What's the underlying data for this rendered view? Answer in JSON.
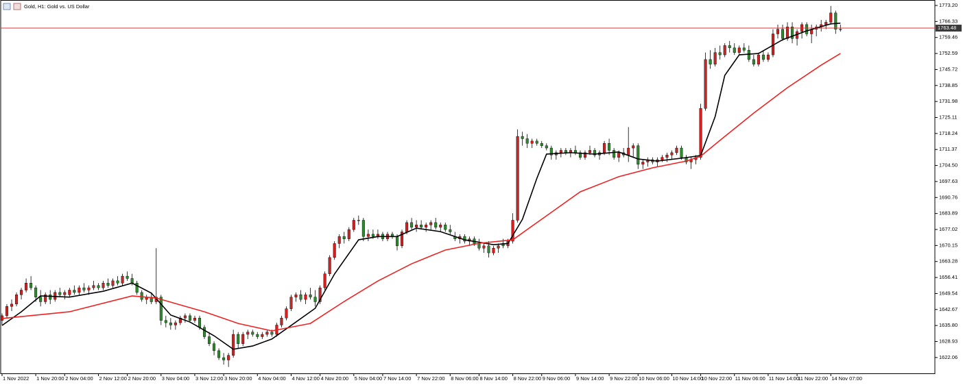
{
  "chart_data": {
    "type": "candlestick",
    "title": "Gold, H1:  Gold vs. US Dollar",
    "up_color": "#d42020",
    "down_color": "#2d8a2d",
    "wick_color": "#000000",
    "xlim": [
      -0.28,
      193.6
    ],
    "ylim": [
      1615.26,
      1775.55
    ],
    "yticks": [
      {
        "value": 1773.2,
        "label": "1773.20"
      },
      1766.33,
      1759.46,
      1752.59,
      1745.72,
      1738.85,
      1731.98,
      1725.11,
      1718.24,
      1711.37,
      {
        "value": 1704.5,
        "label": "1704.50"
      },
      1697.63,
      1690.76,
      1683.89,
      1677.02,
      1670.15,
      1663.28,
      1656.41,
      1649.54,
      1642.67,
      {
        "value": 1635.8,
        "label": "1635.80"
      },
      1628.93,
      1622.06
    ],
    "xticks": [
      {
        "value": 0,
        "label": "1 Nov 2022"
      },
      {
        "value": 7,
        "label": "1 Nov 20:00"
      },
      {
        "value": 13,
        "label": "2 Nov 04:00"
      },
      {
        "value": 20,
        "label": "2 Nov 12:00"
      },
      {
        "value": 26,
        "label": "2 Nov 20:00"
      },
      {
        "value": 33,
        "label": "3 Nov 04:00"
      },
      {
        "value": 40,
        "label": "3 Nov 12:00"
      },
      {
        "value": 46,
        "label": "3 Nov 20:00"
      },
      {
        "value": 53,
        "label": "4 Nov 04:00"
      },
      {
        "value": 60,
        "label": "4 Nov 12:00"
      },
      {
        "value": 66,
        "label": "4 Nov 20:00"
      },
      {
        "value": 73,
        "label": "5 Nov 04:00"
      },
      {
        "value": 79,
        "label": "7 Nov 14:00"
      },
      {
        "value": 86,
        "label": "7 Nov 22:00"
      },
      {
        "value": 93,
        "label": "8 Nov 06:00"
      },
      {
        "value": 99,
        "label": "8 Nov 14:00"
      },
      {
        "value": 106,
        "label": "8 Nov 22:00"
      },
      {
        "value": 112,
        "label": "9 Nov 06:00"
      },
      {
        "value": 119,
        "label": "9 Nov 14:00"
      },
      {
        "value": 126,
        "label": "9 Nov 22:00"
      },
      {
        "value": 132,
        "label": "10 Nov 06:00"
      },
      {
        "value": 139,
        "label": "10 Nov 14:00"
      },
      {
        "value": 145,
        "label": "10 Nov 22:00"
      },
      {
        "value": 152,
        "label": "11 Nov 06:00"
      },
      {
        "value": 159,
        "label": "11 Nov 14:00"
      },
      {
        "value": 165,
        "label": "11 Nov 22:00"
      },
      {
        "value": 172,
        "label": "14 Nov 07:00"
      }
    ],
    "bid": 1763.48,
    "bid_color": "#e03030",
    "ohlc": [
      [
        1638,
        1641,
        1636,
        1640
      ],
      [
        1640,
        1645,
        1639,
        1644
      ],
      [
        1644,
        1647,
        1642,
        1645
      ],
      [
        1645,
        1650,
        1644,
        1649
      ],
      [
        1649,
        1652,
        1647,
        1651
      ],
      [
        1651,
        1656,
        1650,
        1654
      ],
      [
        1654,
        1657,
        1651,
        1652
      ],
      [
        1652,
        1653,
        1646,
        1648
      ],
      [
        1648,
        1651,
        1644,
        1646
      ],
      [
        1646,
        1650,
        1645,
        1649
      ],
      [
        1649,
        1651,
        1645,
        1647
      ],
      [
        1647,
        1651,
        1646,
        1650
      ],
      [
        1650,
        1652,
        1648,
        1649
      ],
      [
        1649,
        1651,
        1647,
        1650
      ],
      [
        1649,
        1652,
        1648,
        1651
      ],
      [
        1651,
        1653,
        1649,
        1650
      ],
      [
        1650,
        1653,
        1649,
        1652
      ],
      [
        1652,
        1654,
        1650,
        1651
      ],
      [
        1651,
        1653,
        1649,
        1652
      ],
      [
        1652,
        1655,
        1651,
        1653
      ],
      [
        1653,
        1654,
        1651,
        1652
      ],
      [
        1652,
        1655,
        1651,
        1654
      ],
      [
        1654,
        1656,
        1652,
        1653
      ],
      [
        1653,
        1656,
        1652,
        1655
      ],
      [
        1655,
        1657,
        1653,
        1654
      ],
      [
        1654,
        1658,
        1653,
        1657
      ],
      [
        1657,
        1659,
        1655,
        1656
      ],
      [
        1656,
        1658,
        1653,
        1654
      ],
      [
        1654,
        1655,
        1649,
        1650
      ],
      [
        1650,
        1651,
        1646,
        1647
      ],
      [
        1647,
        1649,
        1645,
        1648
      ],
      [
        1648,
        1650,
        1645,
        1646
      ],
      [
        1646,
        1669,
        1645,
        1648
      ],
      [
        1648,
        1649,
        1636,
        1638
      ],
      [
        1638,
        1640,
        1635,
        1637
      ],
      [
        1637,
        1639,
        1634,
        1636
      ],
      [
        1636,
        1638,
        1634,
        1637
      ],
      [
        1637,
        1640,
        1636,
        1639
      ],
      [
        1639,
        1641,
        1637,
        1640
      ],
      [
        1640,
        1641,
        1637,
        1638
      ],
      [
        1638,
        1640,
        1637,
        1639
      ],
      [
        1639,
        1640,
        1634,
        1635
      ],
      [
        1635,
        1636,
        1630,
        1631
      ],
      [
        1631,
        1633,
        1627,
        1628
      ],
      [
        1628,
        1629,
        1623,
        1625
      ],
      [
        1625,
        1626,
        1621,
        1622
      ],
      [
        1622,
        1624,
        1619,
        1621
      ],
      [
        1621,
        1624,
        1618,
        1623
      ],
      [
        1623,
        1634,
        1622,
        1632
      ],
      [
        1632,
        1633,
        1626,
        1628
      ],
      [
        1628,
        1633,
        1627,
        1632
      ],
      [
        1632,
        1634,
        1630,
        1633
      ],
      [
        1633,
        1634,
        1631,
        1632
      ],
      [
        1632,
        1633,
        1630,
        1631
      ],
      [
        1631,
        1633,
        1630,
        1632
      ],
      [
        1632,
        1634,
        1631,
        1633
      ],
      [
        1633,
        1634,
        1631,
        1632
      ],
      [
        1632,
        1637,
        1631,
        1636
      ],
      [
        1636,
        1640,
        1635,
        1639
      ],
      [
        1639,
        1644,
        1638,
        1643
      ],
      [
        1643,
        1649,
        1642,
        1648
      ],
      [
        1648,
        1650,
        1646,
        1649
      ],
      [
        1649,
        1651,
        1646,
        1647
      ],
      [
        1647,
        1650,
        1645,
        1649
      ],
      [
        1649,
        1652,
        1647,
        1648
      ],
      [
        1648,
        1651,
        1644,
        1646
      ],
      [
        1646,
        1653,
        1645,
        1652
      ],
      [
        1652,
        1659,
        1651,
        1658
      ],
      [
        1658,
        1666,
        1657,
        1665
      ],
      [
        1665,
        1672,
        1664,
        1671
      ],
      [
        1671,
        1675,
        1669,
        1674
      ],
      [
        1674,
        1676,
        1671,
        1673
      ],
      [
        1673,
        1678,
        1672,
        1677
      ],
      [
        1677,
        1682,
        1676,
        1681
      ],
      [
        1681,
        1683,
        1679,
        1681
      ],
      [
        1681,
        1682,
        1672,
        1674
      ],
      [
        1674,
        1677,
        1672,
        1675
      ],
      [
        1675,
        1677,
        1673,
        1674
      ],
      [
        1674,
        1677,
        1673,
        1675
      ],
      [
        1675,
        1676,
        1672,
        1673
      ],
      [
        1673,
        1676,
        1672,
        1675
      ],
      [
        1675,
        1676,
        1673,
        1674
      ],
      [
        1674,
        1675,
        1668,
        1670
      ],
      [
        1670,
        1677,
        1669,
        1676
      ],
      [
        1676,
        1681,
        1675,
        1680
      ],
      [
        1680,
        1682,
        1677,
        1678
      ],
      [
        1678,
        1681,
        1676,
        1679
      ],
      [
        1679,
        1681,
        1677,
        1678
      ],
      [
        1678,
        1680,
        1676,
        1679
      ],
      [
        1679,
        1681,
        1677,
        1680
      ],
      [
        1680,
        1682,
        1677,
        1678
      ],
      [
        1678,
        1680,
        1676,
        1679
      ],
      [
        1679,
        1680,
        1676,
        1677
      ],
      [
        1677,
        1679,
        1675,
        1676
      ],
      [
        1674,
        1676,
        1672,
        1673
      ],
      [
        1673,
        1675,
        1671,
        1674
      ],
      [
        1674,
        1675,
        1671,
        1672
      ],
      [
        1672,
        1674,
        1670,
        1673
      ],
      [
        1673,
        1674,
        1670,
        1671
      ],
      [
        1671,
        1673,
        1668,
        1669
      ],
      [
        1669,
        1671,
        1667,
        1670
      ],
      [
        1670,
        1672,
        1665,
        1667
      ],
      [
        1667,
        1670,
        1666,
        1669
      ],
      [
        1669,
        1671,
        1667,
        1670
      ],
      [
        1671,
        1673,
        1669,
        1670
      ],
      [
        1670,
        1673,
        1669,
        1672
      ],
      [
        1672,
        1684,
        1671,
        1681
      ],
      [
        1681,
        1720,
        1680,
        1717
      ],
      [
        1717,
        1719,
        1713,
        1716
      ],
      [
        1716,
        1718,
        1712,
        1714
      ],
      [
        1714,
        1716,
        1712,
        1715
      ],
      [
        1715,
        1716,
        1713,
        1714
      ],
      [
        1714,
        1715,
        1712,
        1713
      ],
      [
        1713,
        1714,
        1711,
        1712
      ],
      [
        1712,
        1713,
        1707,
        1709
      ],
      [
        1709,
        1711,
        1707,
        1710
      ],
      [
        1710,
        1712,
        1708,
        1711
      ],
      [
        1711,
        1712,
        1709,
        1710
      ],
      [
        1710,
        1712,
        1708,
        1711
      ],
      [
        1711,
        1713,
        1709,
        1710
      ],
      [
        1710,
        1711,
        1707,
        1708
      ],
      [
        1708,
        1711,
        1707,
        1710
      ],
      [
        1710,
        1713,
        1709,
        1711
      ],
      [
        1711,
        1712,
        1708,
        1709
      ],
      [
        1709,
        1711,
        1707,
        1710
      ],
      [
        1710,
        1715,
        1709,
        1714
      ],
      [
        1714,
        1716,
        1709,
        1711
      ],
      [
        1711,
        1712,
        1707,
        1708
      ],
      [
        1708,
        1711,
        1706,
        1710
      ],
      [
        1710,
        1712,
        1708,
        1709
      ],
      [
        1709,
        1721,
        1706,
        1712
      ],
      [
        1712,
        1714,
        1708,
        1713
      ],
      [
        1713,
        1714,
        1703,
        1705
      ],
      [
        1705,
        1707,
        1703,
        1706
      ],
      [
        1706,
        1708,
        1704,
        1707
      ],
      [
        1707,
        1708,
        1705,
        1706
      ],
      [
        1706,
        1708,
        1704,
        1707
      ],
      [
        1707,
        1709,
        1706,
        1708
      ],
      [
        1708,
        1710,
        1706,
        1709
      ],
      [
        1709,
        1711,
        1707,
        1710
      ],
      [
        1710,
        1713,
        1709,
        1712
      ],
      [
        1712,
        1713,
        1707,
        1708
      ],
      [
        1708,
        1709,
        1705,
        1706
      ],
      [
        1706,
        1708,
        1703,
        1707
      ],
      [
        1707,
        1709,
        1705,
        1708
      ],
      [
        1708,
        1731,
        1707,
        1729
      ],
      [
        1729,
        1753,
        1728,
        1750
      ],
      [
        1750,
        1754,
        1746,
        1748
      ],
      [
        1748,
        1755,
        1747,
        1753
      ],
      [
        1753,
        1756,
        1750,
        1752
      ],
      [
        1752,
        1757,
        1751,
        1756
      ],
      [
        1756,
        1758,
        1753,
        1755
      ],
      [
        1755,
        1757,
        1752,
        1753
      ],
      [
        1753,
        1756,
        1752,
        1755
      ],
      [
        1755,
        1757,
        1753,
        1754
      ],
      [
        1754,
        1756,
        1749,
        1750
      ],
      [
        1750,
        1752,
        1747,
        1748
      ],
      [
        1748,
        1753,
        1747,
        1752
      ],
      [
        1752,
        1754,
        1749,
        1750
      ],
      [
        1750,
        1753,
        1749,
        1752
      ],
      [
        1752,
        1763,
        1751,
        1761
      ],
      [
        1761,
        1765,
        1759,
        1763
      ],
      [
        1763,
        1765,
        1758,
        1759
      ],
      [
        1759,
        1766,
        1758,
        1764
      ],
      [
        1764,
        1766,
        1757,
        1759
      ],
      [
        1759,
        1763,
        1756,
        1762
      ],
      [
        1762,
        1766,
        1759,
        1765
      ],
      [
        1765,
        1766,
        1760,
        1761
      ],
      [
        1761,
        1765,
        1757,
        1763
      ],
      [
        1763,
        1765,
        1760,
        1764
      ],
      [
        1764,
        1767,
        1762,
        1765
      ],
      [
        1765,
        1767,
        1763,
        1766
      ],
      [
        1766,
        1773,
        1765,
        1770
      ],
      [
        1770,
        1771,
        1761,
        1763
      ],
      [
        1763,
        1765,
        1762,
        1763
      ]
    ],
    "lines": [
      {
        "color": "#000000",
        "x": [
          0,
          4,
          8,
          14,
          21,
          27,
          31,
          35,
          39,
          44,
          48,
          52,
          56,
          61,
          65,
          69,
          74,
          78,
          82,
          86,
          91,
          96,
          102,
          105,
          108,
          111,
          113,
          118,
          123,
          128,
          132,
          136,
          142,
          145,
          148,
          150,
          153,
          157,
          162,
          167,
          172,
          174
        ],
        "values": [
          1635.8,
          1641.7,
          1648.5,
          1648,
          1650.5,
          1654,
          1649.7,
          1640.3,
          1637.3,
          1631.4,
          1625.6,
          1627,
          1630,
          1637.3,
          1643.2,
          1657.9,
          1672.6,
          1674,
          1674,
          1677.6,
          1676.1,
          1672.6,
          1670.5,
          1671,
          1681.4,
          1699,
          1709.4,
          1710,
          1709.4,
          1710.3,
          1707.3,
          1706.4,
          1707.9,
          1708.8,
          1725.5,
          1743.2,
          1752,
          1752.6,
          1758.5,
          1762.3,
          1765.3,
          1765.6
        ]
      },
      {
        "color": "#ee2222",
        "x": [
          0,
          14,
          27,
          32,
          42,
          49,
          56,
          64,
          71,
          78,
          85,
          92,
          99,
          106,
          113,
          120,
          128,
          135,
          142,
          145,
          149,
          156,
          163,
          170,
          174
        ],
        "values": [
          1638.8,
          1641.7,
          1648.5,
          1647.6,
          1641.7,
          1636.7,
          1633.5,
          1636.7,
          1646.1,
          1654.9,
          1662.3,
          1668.2,
          1671.1,
          1672.6,
          1682.9,
          1693.2,
          1699.7,
          1703.5,
          1706.4,
          1708.5,
          1715.3,
          1727,
          1737.9,
          1747.6,
          1752.6
        ]
      }
    ]
  }
}
